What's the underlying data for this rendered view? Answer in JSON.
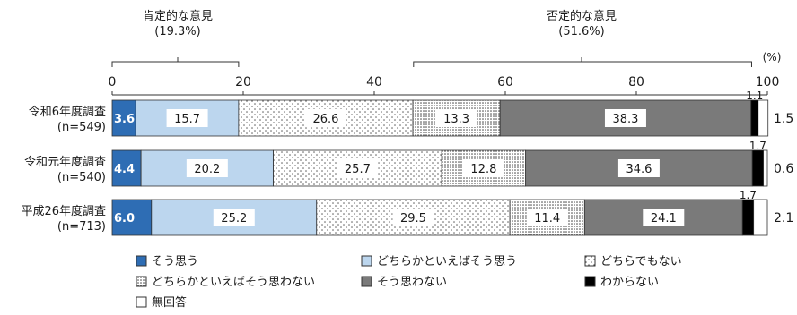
{
  "chart_data": {
    "type": "bar",
    "orientation": "horizontal-stacked",
    "unit_label": "(%)",
    "xlim": [
      0,
      100
    ],
    "ticks": [
      0,
      20,
      40,
      60,
      80,
      100
    ],
    "brackets": [
      {
        "label": "肯定的な意見",
        "value": "(19.3%)"
      },
      {
        "label": "否定的な意見",
        "value": "(51.6%)"
      }
    ],
    "rows": [
      {
        "label": "令和6年度調査",
        "n": "(n=549)",
        "values": [
          3.6,
          15.7,
          26.6,
          13.3,
          38.3,
          1.1,
          1.5
        ],
        "labels": [
          "3.6",
          "15.7",
          "26.6",
          "13.3",
          "38.3",
          "1.1",
          "1.5"
        ]
      },
      {
        "label": "令和元年度調査",
        "n": "(n=540)",
        "values": [
          4.4,
          20.2,
          25.7,
          12.8,
          34.6,
          1.7,
          0.6
        ],
        "labels": [
          "4.4",
          "20.2",
          "25.7",
          "12.8",
          "34.6",
          "1.7",
          "0.6"
        ]
      },
      {
        "label": "平成26年度調査",
        "n": "(n=713)",
        "values": [
          6.0,
          25.2,
          29.5,
          11.4,
          24.1,
          1.7,
          2.1
        ],
        "labels": [
          "6.0",
          "25.2",
          "29.5",
          "11.4",
          "24.1",
          "1.7",
          "2.1"
        ]
      }
    ],
    "series": [
      {
        "name": "そう思う",
        "color": "#2e6db4",
        "pattern": "solid"
      },
      {
        "name": "どちらかといえばそう思う",
        "color": "#bcd6ee",
        "pattern": "solid"
      },
      {
        "name": "どちらでもない",
        "color": "#ffffff",
        "pattern": "dots-sparse"
      },
      {
        "name": "どちらかといえばそう思わない",
        "color": "#ffffff",
        "pattern": "dots-dense"
      },
      {
        "name": "そう思わない",
        "color": "#7a7a7a",
        "pattern": "solid"
      },
      {
        "name": "わからない",
        "color": "#000000",
        "pattern": "solid"
      },
      {
        "name": "無回答",
        "color": "#ffffff",
        "pattern": "solid"
      }
    ]
  }
}
